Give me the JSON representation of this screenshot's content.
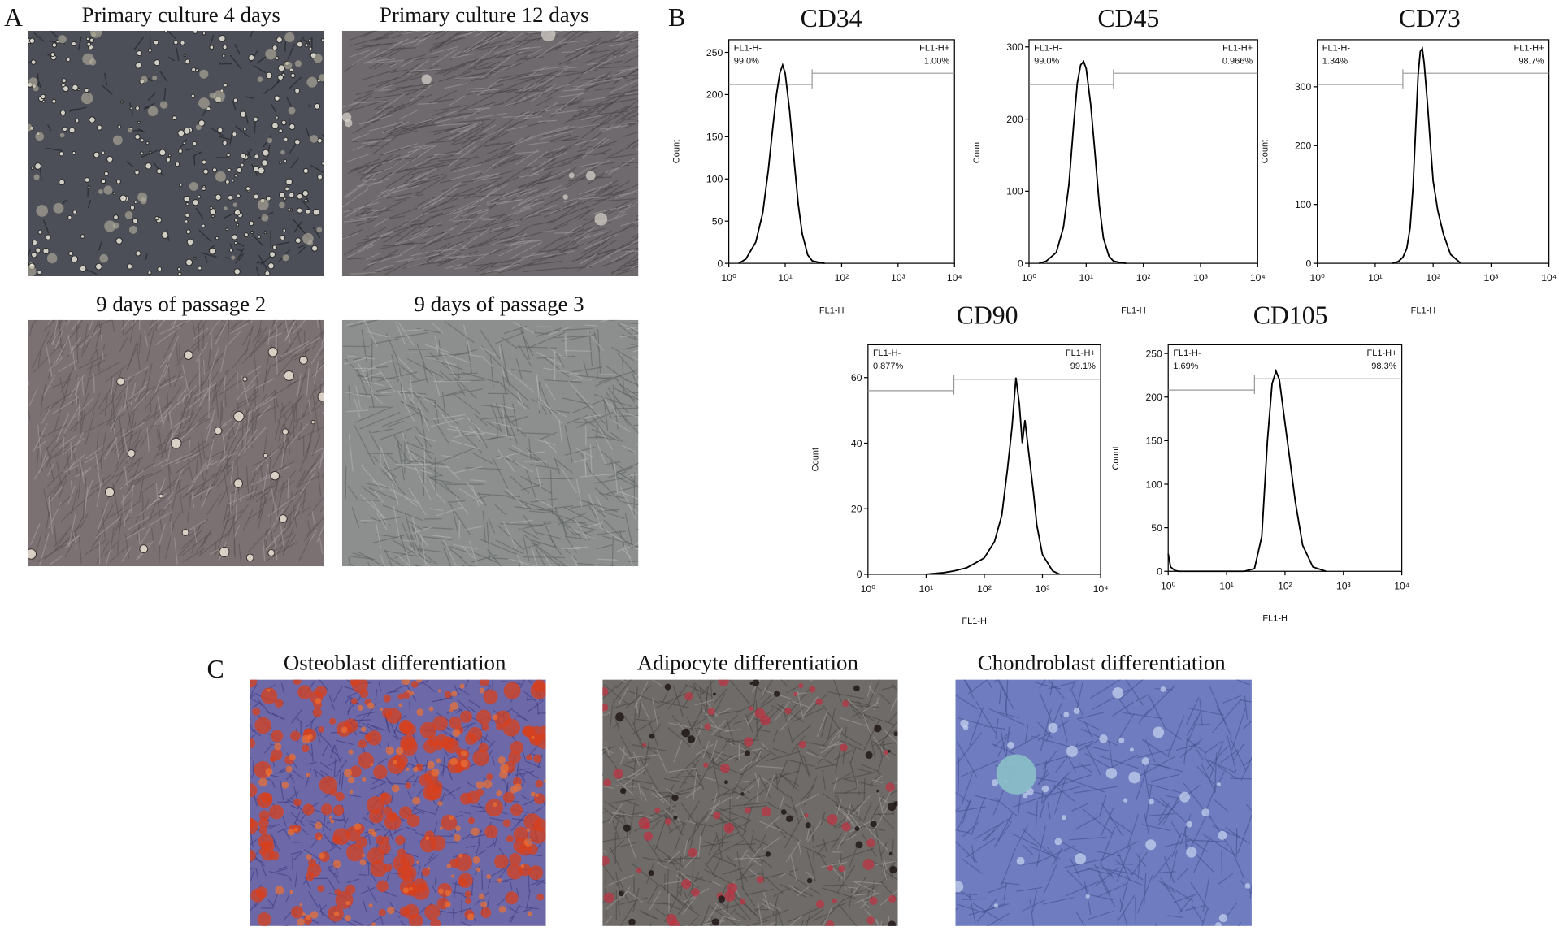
{
  "panel_labels": [
    "A",
    "B",
    "C"
  ],
  "micrographs": [
    {
      "caption": "Primary culture 4 days"
    },
    {
      "caption": "Primary culture 12 days"
    },
    {
      "caption": "9 days of passage 2"
    },
    {
      "caption": "9 days of passage 3"
    }
  ],
  "differentiation": [
    {
      "caption": "Osteoblast  differentiation"
    },
    {
      "caption": "Adipocyte   differentiation"
    },
    {
      "caption": "Chondroblast  differentiation"
    }
  ],
  "chart_data": [
    {
      "type": "line",
      "title": "CD34",
      "x_label": "FL1-H",
      "y_label": "Count",
      "log_x": true,
      "xlim": [
        1,
        10000
      ],
      "xticks": [
        {
          "value": 1,
          "label": "10⁰"
        },
        {
          "value": 10,
          "label": "10¹"
        },
        {
          "value": 100,
          "label": "10²"
        },
        {
          "value": 1000,
          "label": "10³"
        },
        {
          "value": 10000,
          "label": "10⁴"
        }
      ],
      "ylim": [
        0,
        265
      ],
      "yticks": [
        0,
        50,
        100,
        150,
        200,
        250
      ],
      "x": [
        1.5,
        2,
        3,
        4,
        5,
        6,
        7,
        8,
        9,
        10,
        12,
        14,
        17,
        20,
        25,
        30,
        40,
        50
      ],
      "values": [
        0,
        5,
        25,
        60,
        110,
        160,
        200,
        225,
        235,
        225,
        180,
        130,
        70,
        35,
        10,
        3,
        1,
        0
      ],
      "color": "#000000",
      "gate_threshold": 30,
      "gates": [
        {
          "name": "FL1-H-",
          "percent": "99.0%"
        },
        {
          "name": "FL1-H+",
          "percent": "1.00%"
        }
      ]
    },
    {
      "type": "line",
      "title": "CD45",
      "x_label": "FL1-H",
      "y_label": "Count",
      "log_x": true,
      "xlim": [
        1,
        10000
      ],
      "xticks": [
        {
          "value": 1,
          "label": "10⁰"
        },
        {
          "value": 10,
          "label": "10¹"
        },
        {
          "value": 100,
          "label": "10²"
        },
        {
          "value": 1000,
          "label": "10³"
        },
        {
          "value": 10000,
          "label": "10⁴"
        }
      ],
      "ylim": [
        0,
        310
      ],
      "yticks": [
        0,
        100,
        200,
        300
      ],
      "x": [
        1.5,
        2,
        3,
        4,
        5,
        6,
        7,
        8,
        9,
        10,
        12,
        14,
        17,
        20,
        25,
        30,
        40,
        50
      ],
      "values": [
        0,
        3,
        15,
        50,
        110,
        190,
        250,
        275,
        280,
        270,
        220,
        160,
        80,
        35,
        10,
        3,
        1,
        0
      ],
      "color": "#000000",
      "gate_threshold": 30,
      "gates": [
        {
          "name": "FL1-H-",
          "percent": "99.0%"
        },
        {
          "name": "FL1-H+",
          "percent": "0.966%"
        }
      ]
    },
    {
      "type": "line",
      "title": "CD73",
      "x_label": "FL1-H",
      "y_label": "Count",
      "log_x": true,
      "xlim": [
        1,
        10000
      ],
      "xticks": [
        {
          "value": 1,
          "label": "10⁰"
        },
        {
          "value": 10,
          "label": "10¹"
        },
        {
          "value": 100,
          "label": "10²"
        },
        {
          "value": 1000,
          "label": "10³"
        },
        {
          "value": 10000,
          "label": "10⁴"
        }
      ],
      "ylim": [
        0,
        380
      ],
      "yticks": [
        0,
        100,
        200,
        300
      ],
      "x": [
        20,
        25,
        30,
        35,
        40,
        45,
        50,
        55,
        60,
        65,
        70,
        80,
        90,
        100,
        120,
        150,
        200,
        300
      ],
      "values": [
        0,
        3,
        10,
        25,
        60,
        130,
        230,
        320,
        360,
        365,
        340,
        270,
        200,
        140,
        90,
        50,
        15,
        0
      ],
      "color": "#000000",
      "gate_threshold": 30,
      "gates": [
        {
          "name": "FL1-H-",
          "percent": "1.34%"
        },
        {
          "name": "FL1-H+",
          "percent": "98.7%"
        }
      ]
    },
    {
      "type": "line",
      "title": "CD90",
      "x_label": "FL1-H",
      "y_label": "Count",
      "log_x": true,
      "xlim": [
        1,
        10000
      ],
      "xticks": [
        {
          "value": 1,
          "label": "10⁰"
        },
        {
          "value": 10,
          "label": "10¹"
        },
        {
          "value": 100,
          "label": "10²"
        },
        {
          "value": 1000,
          "label": "10³"
        },
        {
          "value": 10000,
          "label": "10⁴"
        }
      ],
      "ylim": [
        0,
        70
      ],
      "yticks": [
        0,
        20,
        40,
        60
      ],
      "x": [
        10,
        20,
        30,
        50,
        80,
        100,
        150,
        200,
        250,
        300,
        350,
        400,
        450,
        500,
        600,
        700,
        800,
        1000,
        1500,
        2000
      ],
      "values": [
        0,
        0.5,
        1,
        2,
        4,
        5,
        10,
        18,
        32,
        45,
        60,
        52,
        40,
        47,
        35,
        25,
        15,
        6,
        1,
        0
      ],
      "color": "#000000",
      "gate_threshold": 30,
      "gates": [
        {
          "name": "FL1-H-",
          "percent": "0.877%"
        },
        {
          "name": "FL1-H+",
          "percent": "99.1%"
        }
      ]
    },
    {
      "type": "line",
      "title": "CD105",
      "x_label": "FL1-H",
      "y_label": "Count",
      "log_x": true,
      "xlim": [
        1,
        10000
      ],
      "xticks": [
        {
          "value": 1,
          "label": "10⁰"
        },
        {
          "value": 10,
          "label": "10¹"
        },
        {
          "value": 100,
          "label": "10²"
        },
        {
          "value": 1000,
          "label": "10³"
        },
        {
          "value": 10000,
          "label": "10⁴"
        }
      ],
      "ylim": [
        0,
        260
      ],
      "yticks": [
        0,
        50,
        100,
        150,
        200,
        250
      ],
      "x": [
        1,
        1.1,
        1.3,
        1.5,
        2,
        5,
        10,
        20,
        30,
        40,
        50,
        60,
        70,
        80,
        100,
        120,
        150,
        200,
        300,
        500
      ],
      "values": [
        20,
        5,
        1,
        0,
        0,
        0,
        0,
        0,
        3,
        40,
        150,
        215,
        230,
        220,
        170,
        130,
        80,
        30,
        5,
        0
      ],
      "color": "#000000",
      "gate_threshold": 30,
      "gates": [
        {
          "name": "FL1-H-",
          "percent": "1.69%"
        },
        {
          "name": "FL1-H+",
          "percent": "98.3%"
        }
      ]
    }
  ]
}
